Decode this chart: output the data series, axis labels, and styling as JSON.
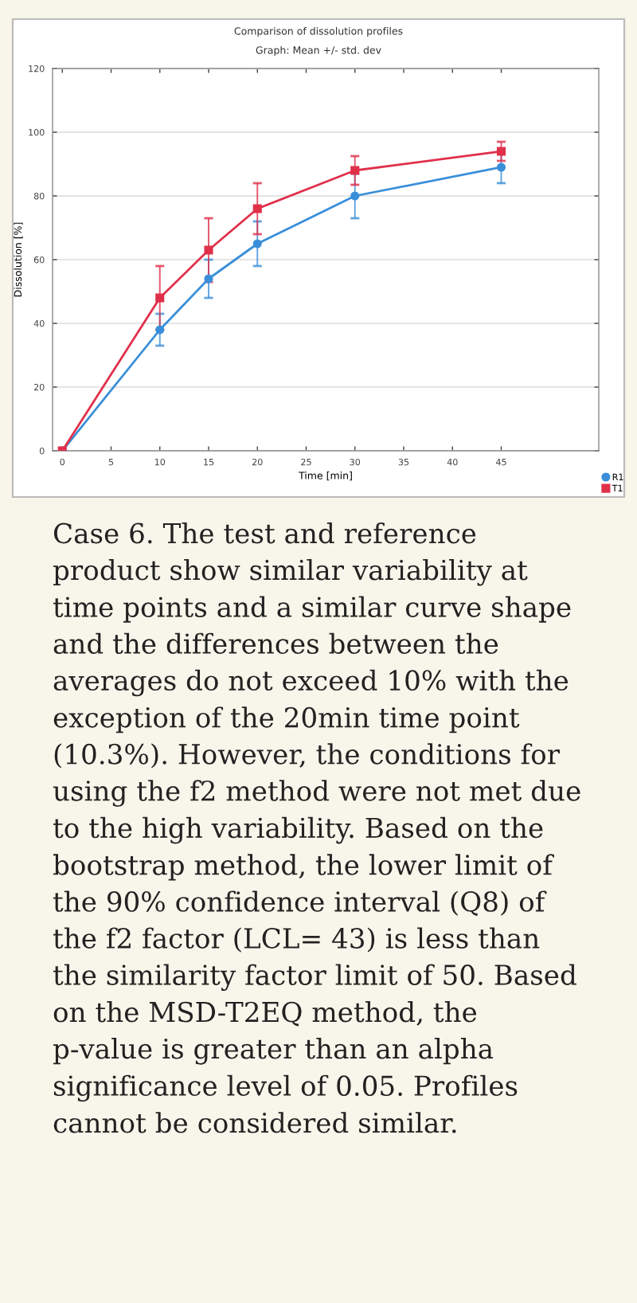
{
  "chart_data": {
    "type": "line",
    "title": "Comparison of dissolution profiles",
    "subtitle": "Graph: Mean +/- std. dev",
    "xlabel": "Time [min]",
    "ylabel": "Dissolution [%]",
    "x": [
      0,
      10,
      15,
      20,
      30,
      45
    ],
    "series": [
      {
        "name": "R1",
        "color": "#3a8fd9",
        "marker": "circle",
        "values": [
          0,
          38,
          54,
          65,
          80,
          89
        ],
        "errors": [
          null,
          5,
          6,
          7,
          7,
          5
        ]
      },
      {
        "name": "T1",
        "color": "#e0304a",
        "marker": "square",
        "values": [
          0,
          48,
          63,
          76,
          88,
          94
        ],
        "errors": [
          null,
          10,
          10,
          8,
          4.5,
          3
        ]
      }
    ],
    "xlim": [
      -1,
      55
    ],
    "xticks": [
      0,
      5,
      10,
      15,
      20,
      25,
      30,
      35,
      40,
      45
    ],
    "ylim": [
      0,
      120
    ],
    "yticks": [
      0,
      20,
      40,
      60,
      80,
      100,
      120
    ],
    "grid": "y",
    "legend": "bottom right",
    "line_style": "solid",
    "annotations": [
      "Case 6. The test and reference product show similar variability at time points and a similar curve shape and the differences between the averages do not exceed 10% with the exception of the 20min time point (10.3%). However, the conditions for using the f2 method were not met due to the high variability. Based on the bootstrap method, the lower limit of the 90% confidence interval (Q8) of the f2 factor (LCL= 43) is less than the similarity factor limit of 50. Based on the MSD-T2EQ method, the p-value is greater than an alpha significance level of 0.05. Profiles cannot be considered similar."
    ]
  }
}
